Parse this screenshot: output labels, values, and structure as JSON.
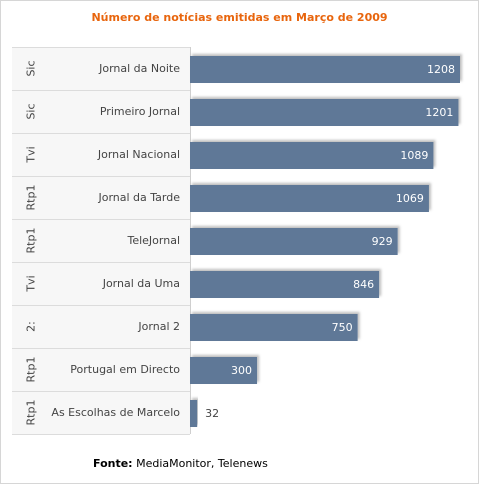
{
  "chart_data": {
    "type": "bar",
    "orientation": "horizontal",
    "title": "Número de notícias emitidas em Março de 2009",
    "categories": [
      "Jornal da Noite",
      "Primeiro Jornal",
      "Jornal Nacional",
      "Jornal da Tarde",
      "TeleJornal",
      "Jornal da Uma",
      "Jornal 2",
      "Portugal em Directo",
      "As Escolhas de Marcelo"
    ],
    "channels": [
      "Sic",
      "Sic",
      "Tvi",
      "Rtp1",
      "Rtp1",
      "Tvi",
      "2:",
      "Rtp1",
      "Rtp1"
    ],
    "values": [
      1208,
      1201,
      1089,
      1069,
      929,
      846,
      750,
      300,
      32
    ],
    "xlim": [
      0,
      1208
    ],
    "bar_color": "#5f7897"
  },
  "source": {
    "label": "Fonte:",
    "text": "MediaMonitor, Telenews"
  }
}
